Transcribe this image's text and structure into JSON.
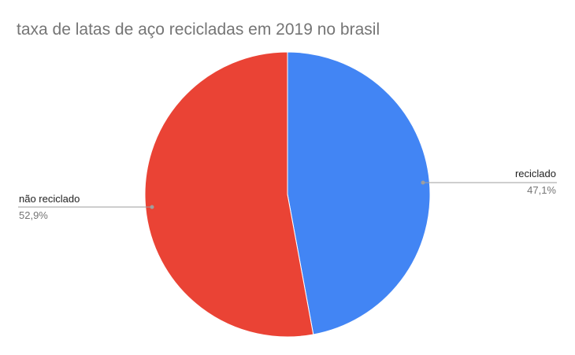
{
  "chart_data": {
    "type": "pie",
    "title": "taxa de latas de aço recicladas em 2019 no brasil",
    "slices": [
      {
        "label": "reciclado",
        "value": 47.1,
        "value_label": "47,1%",
        "color": "#4285F4"
      },
      {
        "label": "não reciclado",
        "value": 52.9,
        "value_label": "52,9%",
        "color": "#EA4335"
      }
    ],
    "start_angle": "12 o'clock",
    "direction": "clockwise",
    "legend": "none (labels with leader lines)"
  }
}
